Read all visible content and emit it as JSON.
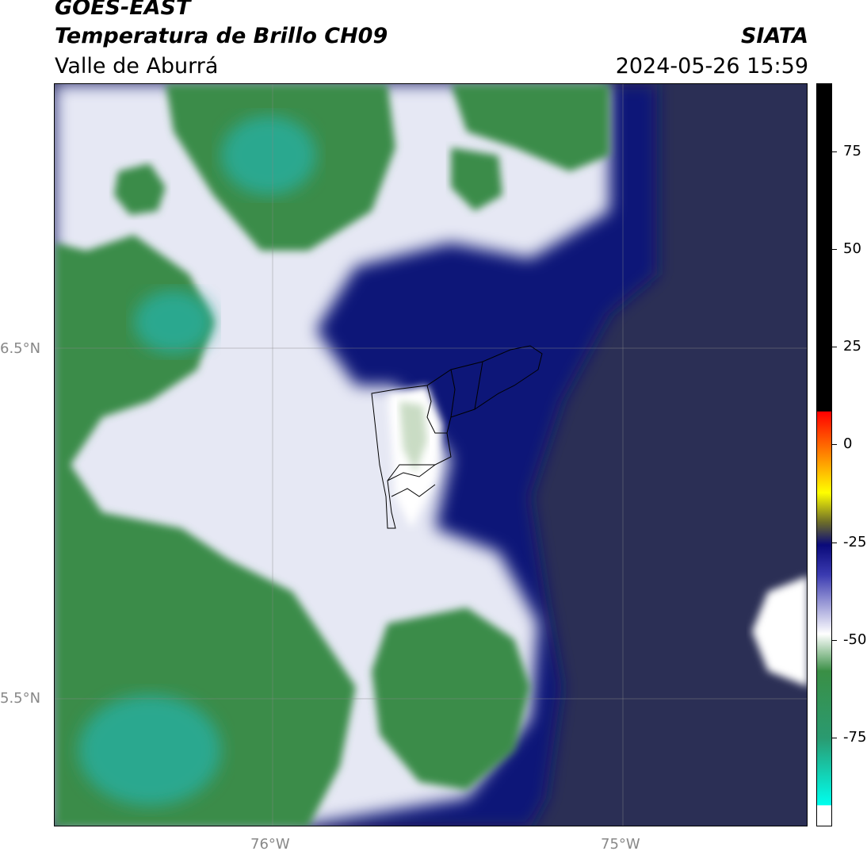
{
  "header": {
    "satellite": "GOES-EAST",
    "product": "Temperatura de Brillo CH09",
    "region": "Valle de Aburrá",
    "source": "SIATA",
    "datetime": "2024-05-26 15:59"
  },
  "axes": {
    "lat_labels": [
      "6.5°N",
      "5.5°N"
    ],
    "lon_labels": [
      "76°W",
      "75°W"
    ]
  },
  "colorbar": {
    "ticks": [
      "75",
      "50",
      "25",
      "0",
      "-25",
      "-50",
      "-75"
    ],
    "colors": {
      "black": "#000000",
      "red": "#ff0000",
      "orange": "#ff8800",
      "yellow": "#ffff00",
      "olive": "#6b6b2a",
      "navy": "#0a0a7a",
      "white": "#ffffff",
      "green": "#3a8f45",
      "teal": "#15d8c0",
      "cyan": "#00ffee"
    }
  },
  "map_colors": {
    "dark_slate": "#2b2f55",
    "navy": "#0b1278",
    "green": "#3a8c48",
    "teal": "#2aa88f",
    "white": "#ffffff",
    "light_green": "#c9dcc4"
  }
}
